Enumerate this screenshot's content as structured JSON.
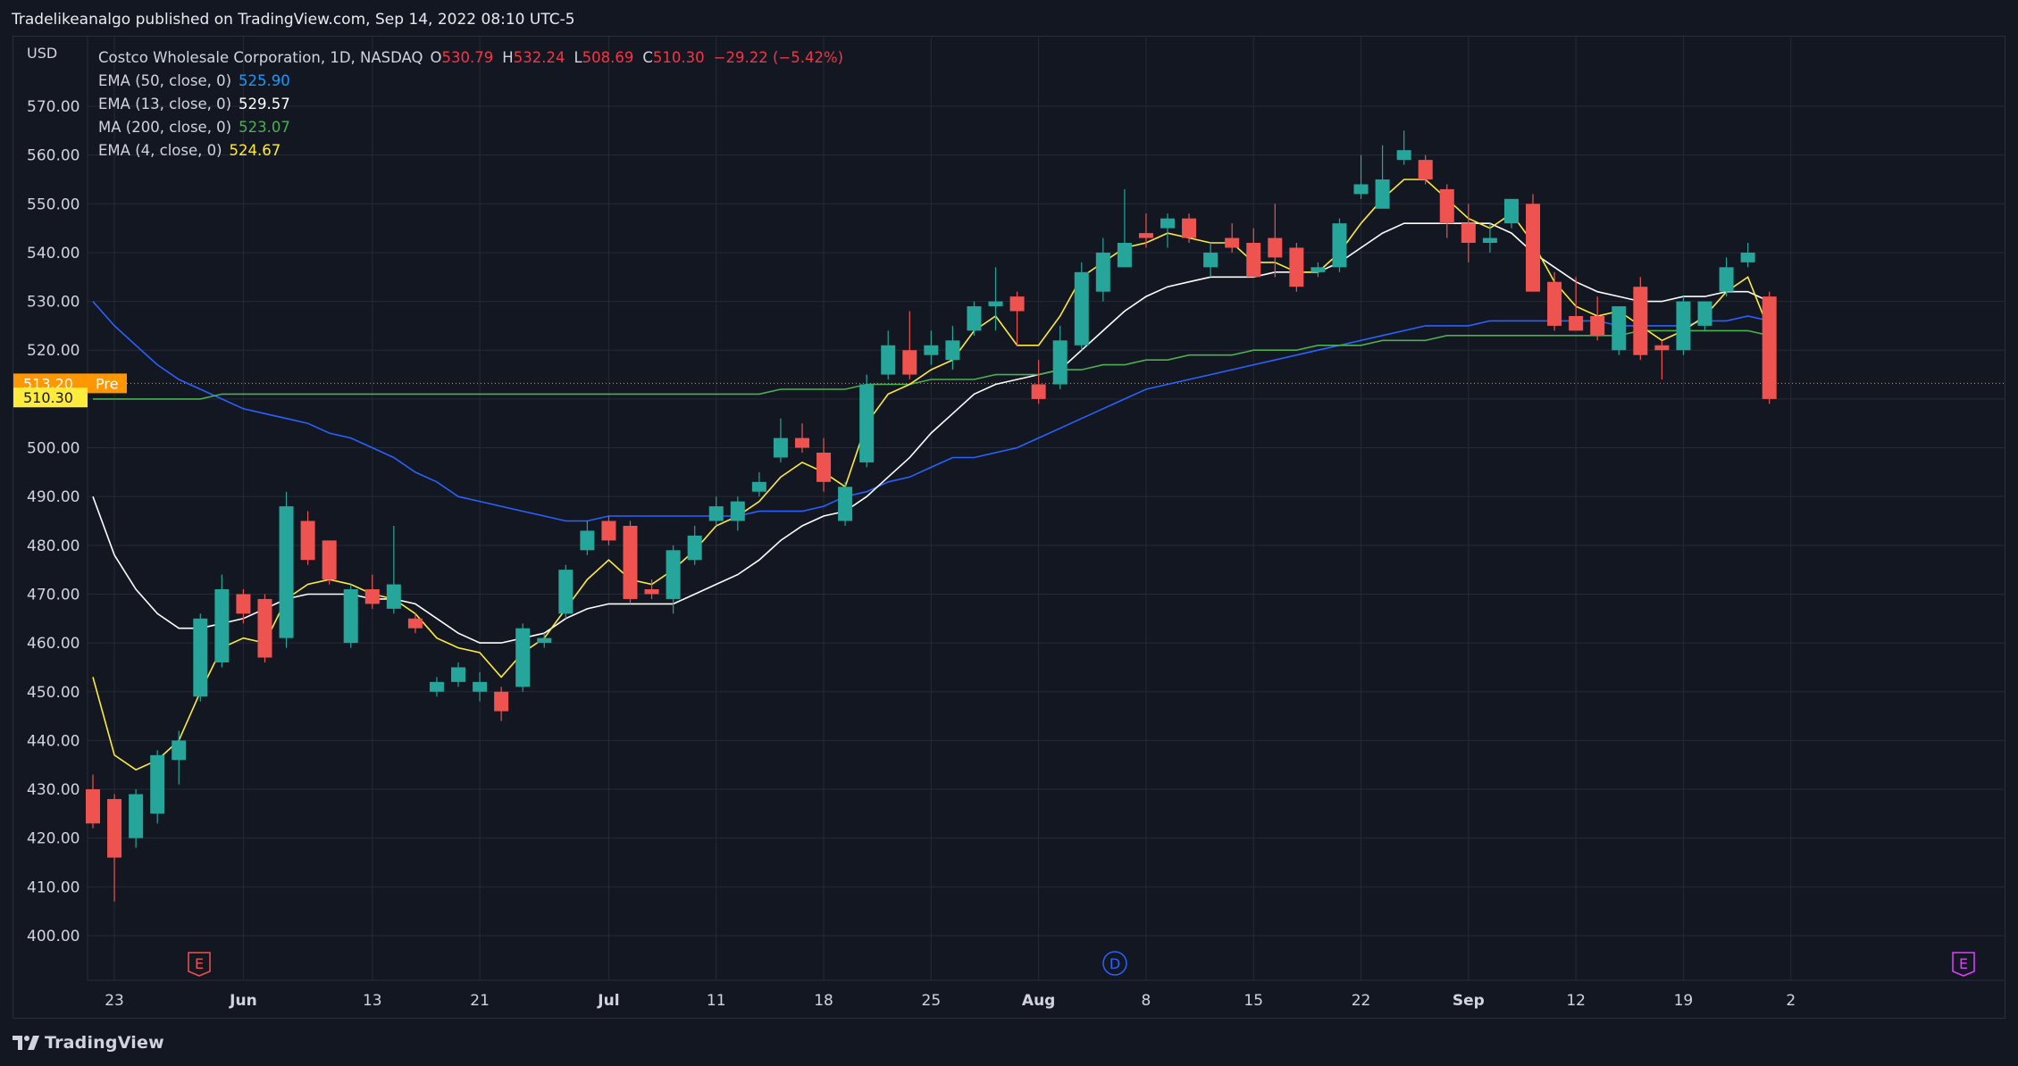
{
  "header": {
    "text": "Tradelikeanalgo published on TradingView.com, Sep 14, 2022 08:10 UTC-5"
  },
  "legend": {
    "symbol": "Costco Wholesale Corporation, 1D, NASDAQ",
    "o_label": "O",
    "o": "530.79",
    "h_label": "H",
    "h": "532.24",
    "l_label": "L",
    "l": "508.69",
    "c_label": "C",
    "c": "510.30",
    "change": "−29.22 (−5.42%)",
    "indicators": [
      {
        "label": "EMA (50, close, 0)",
        "value": "525.90",
        "color": "#2962ff"
      },
      {
        "label": "EMA (13, close, 0)",
        "value": "529.57",
        "color": "#ffffff"
      },
      {
        "label": "MA (200, close, 0)",
        "value": "523.07",
        "color": "#4caf50"
      },
      {
        "label": "EMA (4, close, 0)",
        "value": "524.67",
        "color": "#ffeb3b"
      }
    ]
  },
  "axis": {
    "currency": "USD",
    "y_ticks": [
      "570.00",
      "560.00",
      "550.00",
      "540.00",
      "530.00",
      "520.00",
      "510.00",
      "500.00",
      "490.00",
      "480.00",
      "470.00",
      "460.00",
      "450.00",
      "440.00",
      "430.00",
      "420.00",
      "410.00",
      "400.00"
    ],
    "x_ticks": [
      "23",
      "Jun",
      "13",
      "21",
      "Jul",
      "11",
      "18",
      "25",
      "Aug",
      "8",
      "15",
      "22",
      "Sep",
      "12",
      "19",
      "2"
    ]
  },
  "badges": {
    "pre_value": "513.20",
    "pre_label": "Pre",
    "last_value": "510.30"
  },
  "events": [
    "E",
    "D",
    "E"
  ],
  "footer": {
    "brand": "TradingView"
  },
  "colors": {
    "up": "#26a69a",
    "down": "#ef5350",
    "background": "#131722",
    "grid": "#252a36",
    "pre_badge": "#ff9800",
    "last_badge": "#ffeb3b"
  },
  "chart_data": {
    "type": "candlestick",
    "ylim": [
      395,
      577
    ],
    "candles": [
      {
        "o": 430,
        "h": 433,
        "l": 422,
        "c": 423
      },
      {
        "o": 428,
        "h": 429,
        "l": 407,
        "c": 416
      },
      {
        "o": 420,
        "h": 430,
        "l": 418,
        "c": 429
      },
      {
        "o": 425,
        "h": 438,
        "l": 423,
        "c": 437
      },
      {
        "o": 436,
        "h": 442,
        "l": 431,
        "c": 440
      },
      {
        "o": 449,
        "h": 466,
        "l": 448,
        "c": 465
      },
      {
        "o": 456,
        "h": 474,
        "l": 455,
        "c": 471
      },
      {
        "o": 470,
        "h": 471,
        "l": 464,
        "c": 466
      },
      {
        "o": 469,
        "h": 470,
        "l": 456,
        "c": 457
      },
      {
        "o": 461,
        "h": 491,
        "l": 459,
        "c": 488
      },
      {
        "o": 485,
        "h": 487,
        "l": 476,
        "c": 477
      },
      {
        "o": 481,
        "h": 481,
        "l": 472,
        "c": 473
      },
      {
        "o": 460,
        "h": 472,
        "l": 459,
        "c": 471
      },
      {
        "o": 471,
        "h": 474,
        "l": 467,
        "c": 468
      },
      {
        "o": 467,
        "h": 484,
        "l": 466,
        "c": 472
      },
      {
        "o": 465,
        "h": 466,
        "l": 462,
        "c": 463
      },
      {
        "o": 450,
        "h": 453,
        "l": 449,
        "c": 452
      },
      {
        "o": 452,
        "h": 456,
        "l": 451,
        "c": 455
      },
      {
        "o": 450,
        "h": 454,
        "l": 448,
        "c": 452
      },
      {
        "o": 450,
        "h": 451,
        "l": 444,
        "c": 446
      },
      {
        "o": 451,
        "h": 464,
        "l": 450,
        "c": 463
      },
      {
        "o": 460,
        "h": 462,
        "l": 459,
        "c": 461
      },
      {
        "o": 466,
        "h": 476,
        "l": 465,
        "c": 475
      },
      {
        "o": 479,
        "h": 485,
        "l": 478,
        "c": 483
      },
      {
        "o": 485,
        "h": 486,
        "l": 480,
        "c": 481
      },
      {
        "o": 484,
        "h": 485,
        "l": 468,
        "c": 469
      },
      {
        "o": 471,
        "h": 473,
        "l": 469,
        "c": 470
      },
      {
        "o": 469,
        "h": 480,
        "l": 466,
        "c": 479
      },
      {
        "o": 477,
        "h": 484,
        "l": 476,
        "c": 482
      },
      {
        "o": 485,
        "h": 490,
        "l": 484,
        "c": 488
      },
      {
        "o": 485,
        "h": 490,
        "l": 483,
        "c": 489
      },
      {
        "o": 491,
        "h": 495,
        "l": 490,
        "c": 493
      },
      {
        "o": 498,
        "h": 506,
        "l": 497,
        "c": 502
      },
      {
        "o": 502,
        "h": 505,
        "l": 499,
        "c": 500
      },
      {
        "o": 499,
        "h": 502,
        "l": 491,
        "c": 493
      },
      {
        "o": 485,
        "h": 493,
        "l": 484,
        "c": 492
      },
      {
        "o": 497,
        "h": 515,
        "l": 496,
        "c": 513
      },
      {
        "o": 515,
        "h": 524,
        "l": 514,
        "c": 521
      },
      {
        "o": 520,
        "h": 528,
        "l": 514,
        "c": 515
      },
      {
        "o": 519,
        "h": 524,
        "l": 517,
        "c": 521
      },
      {
        "o": 518,
        "h": 525,
        "l": 516,
        "c": 522
      },
      {
        "o": 524,
        "h": 530,
        "l": 523,
        "c": 529
      },
      {
        "o": 529,
        "h": 537,
        "l": 524,
        "c": 530
      },
      {
        "o": 531,
        "h": 532,
        "l": 521,
        "c": 528
      },
      {
        "o": 513,
        "h": 518,
        "l": 509,
        "c": 510
      },
      {
        "o": 513,
        "h": 525,
        "l": 512,
        "c": 522
      },
      {
        "o": 521,
        "h": 538,
        "l": 520,
        "c": 536
      },
      {
        "o": 532,
        "h": 543,
        "l": 530,
        "c": 540
      },
      {
        "o": 537,
        "h": 553,
        "l": 537,
        "c": 542
      },
      {
        "o": 544,
        "h": 548,
        "l": 541,
        "c": 543
      },
      {
        "o": 545,
        "h": 548,
        "l": 541,
        "c": 547
      },
      {
        "o": 547,
        "h": 548,
        "l": 542,
        "c": 543
      },
      {
        "o": 537,
        "h": 542,
        "l": 535,
        "c": 540
      },
      {
        "o": 543,
        "h": 546,
        "l": 540,
        "c": 541
      },
      {
        "o": 542,
        "h": 545,
        "l": 535,
        "c": 535
      },
      {
        "o": 543,
        "h": 550,
        "l": 535,
        "c": 539
      },
      {
        "o": 541,
        "h": 542,
        "l": 532,
        "c": 533
      },
      {
        "o": 536,
        "h": 538,
        "l": 535,
        "c": 537
      },
      {
        "o": 537,
        "h": 547,
        "l": 536,
        "c": 546
      },
      {
        "o": 552,
        "h": 560,
        "l": 551,
        "c": 554
      },
      {
        "o": 549,
        "h": 562,
        "l": 549,
        "c": 555
      },
      {
        "o": 559,
        "h": 565,
        "l": 558,
        "c": 561
      },
      {
        "o": 559,
        "h": 560,
        "l": 554,
        "c": 555
      },
      {
        "o": 553,
        "h": 554,
        "l": 543,
        "c": 546
      },
      {
        "o": 546,
        "h": 550,
        "l": 538,
        "c": 542
      },
      {
        "o": 542,
        "h": 546,
        "l": 540,
        "c": 543
      },
      {
        "o": 546,
        "h": 551,
        "l": 545,
        "c": 551
      },
      {
        "o": 550,
        "h": 552,
        "l": 532,
        "c": 532
      },
      {
        "o": 534,
        "h": 536,
        "l": 524,
        "c": 525
      },
      {
        "o": 527,
        "h": 535,
        "l": 524,
        "c": 524
      },
      {
        "o": 527,
        "h": 531,
        "l": 522,
        "c": 523
      },
      {
        "o": 520,
        "h": 529,
        "l": 519,
        "c": 529
      },
      {
        "o": 533,
        "h": 535,
        "l": 518,
        "c": 519
      },
      {
        "o": 521,
        "h": 522,
        "l": 514,
        "c": 520
      },
      {
        "o": 520,
        "h": 531,
        "l": 519,
        "c": 530
      },
      {
        "o": 525,
        "h": 530,
        "l": 524,
        "c": 530
      },
      {
        "o": 532,
        "h": 539,
        "l": 531,
        "c": 537
      },
      {
        "o": 538,
        "h": 542,
        "l": 537,
        "c": 540
      },
      {
        "o": 531,
        "h": 532,
        "l": 509,
        "c": 510
      }
    ],
    "series": [
      {
        "name": "EMA (50, close, 0)",
        "color": "#2962ff",
        "values": [
          530,
          525,
          521,
          517,
          514,
          512,
          510,
          508,
          507,
          506,
          505,
          503,
          502,
          500,
          498,
          495,
          493,
          490,
          489,
          488,
          487,
          486,
          485,
          485,
          486,
          486,
          486,
          486,
          486,
          486,
          486,
          487,
          487,
          487,
          488,
          490,
          491,
          493,
          494,
          496,
          498,
          498,
          499,
          500,
          502,
          504,
          506,
          508,
          510,
          512,
          513,
          514,
          515,
          516,
          517,
          518,
          519,
          520,
          521,
          522,
          523,
          524,
          525,
          525,
          525,
          526,
          526,
          526,
          526,
          526,
          526,
          525,
          525,
          525,
          525,
          526,
          526,
          527,
          526
        ]
      },
      {
        "name": "EMA (13, close, 0)",
        "color": "#ffffff",
        "values": [
          490,
          478,
          471,
          466,
          463,
          463,
          464,
          465,
          467,
          469,
          470,
          470,
          470,
          469,
          469,
          468,
          465,
          462,
          460,
          460,
          461,
          462,
          465,
          467,
          468,
          468,
          468,
          468,
          470,
          472,
          474,
          477,
          481,
          484,
          486,
          487,
          490,
          494,
          498,
          503,
          507,
          511,
          513,
          514,
          515,
          516,
          520,
          524,
          528,
          531,
          533,
          534,
          535,
          535,
          535,
          536,
          536,
          536,
          538,
          541,
          544,
          546,
          546,
          546,
          546,
          546,
          544,
          540,
          537,
          534,
          532,
          531,
          530,
          530,
          531,
          531,
          532,
          532,
          530
        ]
      },
      {
        "name": "MA (200, close, 0)",
        "color": "#4caf50",
        "values": [
          510,
          510,
          510,
          510,
          510,
          510,
          511,
          511,
          511,
          511,
          511,
          511,
          511,
          511,
          511,
          511,
          511,
          511,
          511,
          511,
          511,
          511,
          511,
          511,
          511,
          511,
          511,
          511,
          511,
          511,
          511,
          511,
          512,
          512,
          512,
          512,
          513,
          513,
          513,
          514,
          514,
          514,
          515,
          515,
          515,
          516,
          516,
          517,
          517,
          518,
          518,
          519,
          519,
          519,
          520,
          520,
          520,
          521,
          521,
          521,
          522,
          522,
          522,
          523,
          523,
          523,
          523,
          523,
          523,
          523,
          523,
          523,
          524,
          524,
          524,
          524,
          524,
          524,
          523
        ]
      },
      {
        "name": "EMA (4, close, 0)",
        "color": "#ffeb3b",
        "values": [
          453,
          437,
          434,
          436,
          440,
          450,
          459,
          461,
          460,
          469,
          472,
          473,
          472,
          470,
          469,
          466,
          461,
          459,
          458,
          453,
          458,
          461,
          467,
          473,
          477,
          473,
          472,
          475,
          479,
          484,
          486,
          489,
          494,
          497,
          495,
          492,
          505,
          511,
          513,
          516,
          518,
          524,
          527,
          521,
          521,
          527,
          535,
          538,
          541,
          542,
          544,
          543,
          542,
          542,
          538,
          538,
          536,
          536,
          540,
          546,
          551,
          555,
          555,
          551,
          547,
          545,
          548,
          542,
          534,
          529,
          527,
          528,
          525,
          522,
          524,
          527,
          532,
          535,
          524
        ]
      }
    ]
  }
}
